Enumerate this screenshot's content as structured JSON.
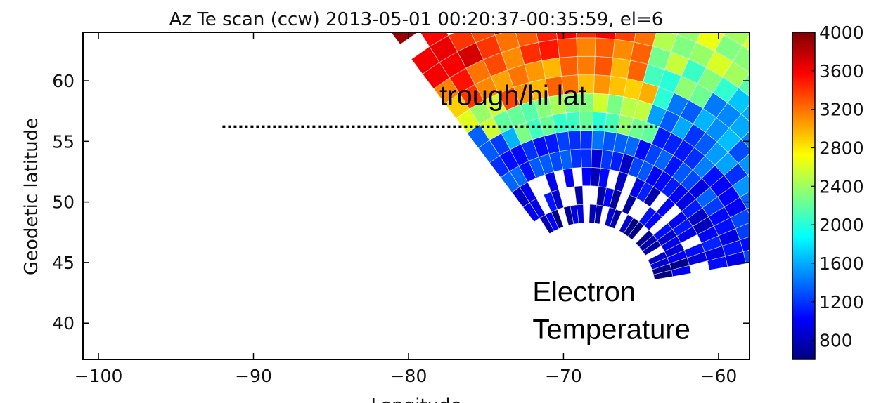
{
  "chart_data": {
    "type": "heatmap",
    "title": "Az Te scan (ccw) 2013-05-01 00:20:37-00:35:59, el=6",
    "xlabel": "Longitude",
    "ylabel": "Geodetic latitude",
    "xlim": [
      -101,
      -58
    ],
    "ylim": [
      37,
      64
    ],
    "xticks": [
      -100,
      -90,
      -80,
      -70,
      -60
    ],
    "xtick_labels": [
      "−100",
      "−90",
      "−80",
      "−70",
      "−60"
    ],
    "yticks": [
      40,
      45,
      50,
      55,
      60
    ],
    "ytick_labels": [
      "40",
      "45",
      "50",
      "55",
      "60"
    ],
    "grid": false,
    "colorbar": {
      "min": 600,
      "max": 4000,
      "ticks": [
        800,
        1200,
        1600,
        2000,
        2400,
        2800,
        3200,
        3600,
        4000
      ],
      "tick_labels": [
        "800",
        "1200",
        "1600",
        "2000",
        "2400",
        "2800",
        "3200",
        "3600",
        "4000"
      ],
      "colormap": "jet"
    },
    "scan": {
      "center": [
        -68.5,
        42.6
      ],
      "beam_azimuth_start_deg": -80,
      "beam_azimuth_end_deg": 37,
      "beam_count": 27,
      "gate_count": 16,
      "values_note": "Te values computed per (beam, gate) from a radial/longitudinal model fitted to the picture"
    },
    "annotations": [
      {
        "text": "trough/hi lat",
        "at": [
          -78,
          58
        ]
      },
      {
        "text": "Electron",
        "at": [
          -72,
          41.8
        ]
      },
      {
        "text": "Temperature",
        "at": [
          -72,
          38.7
        ]
      }
    ],
    "hline": {
      "y": 56.2,
      "x": [
        -92,
        -64
      ],
      "style": "dotted"
    }
  }
}
